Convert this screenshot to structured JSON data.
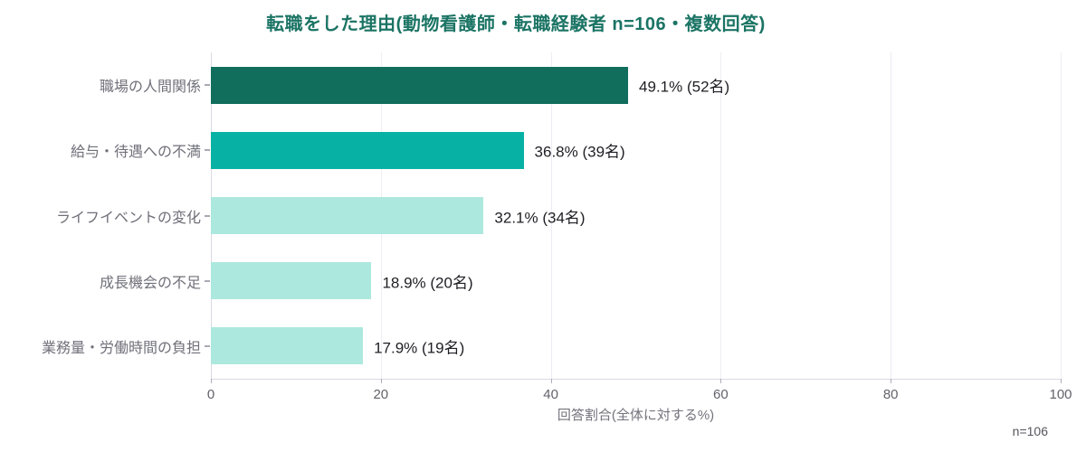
{
  "chart_data": {
    "type": "bar",
    "orientation": "horizontal",
    "title": "転職をした理由(動物看護師・転職経験者 n=106・複数回答)",
    "title_color": "#1b7464",
    "categories": [
      "職場の人間関係",
      "給与・待遇への不満",
      "ライフイベントの変化",
      "成長機会の不足",
      "業務量・労働時間の負担"
    ],
    "values": [
      49.1,
      36.8,
      32.1,
      18.9,
      17.9
    ],
    "counts": [
      52,
      39,
      34,
      20,
      19
    ],
    "value_labels": [
      "49.1% (52名)",
      "36.8% (39名)",
      "32.1% (34名)",
      "18.9% (20名)",
      "17.9% (19名)"
    ],
    "bar_colors": [
      "#116e5c",
      "#07b2a5",
      "#ace8de",
      "#ace8de",
      "#ace8de"
    ],
    "xlabel": "回答割合(全体に対する%)",
    "xlim": [
      0,
      100
    ],
    "xticks": [
      0,
      20,
      40,
      60,
      80,
      100
    ],
    "grid": "vertical",
    "legend": "none",
    "note": "n=106"
  }
}
